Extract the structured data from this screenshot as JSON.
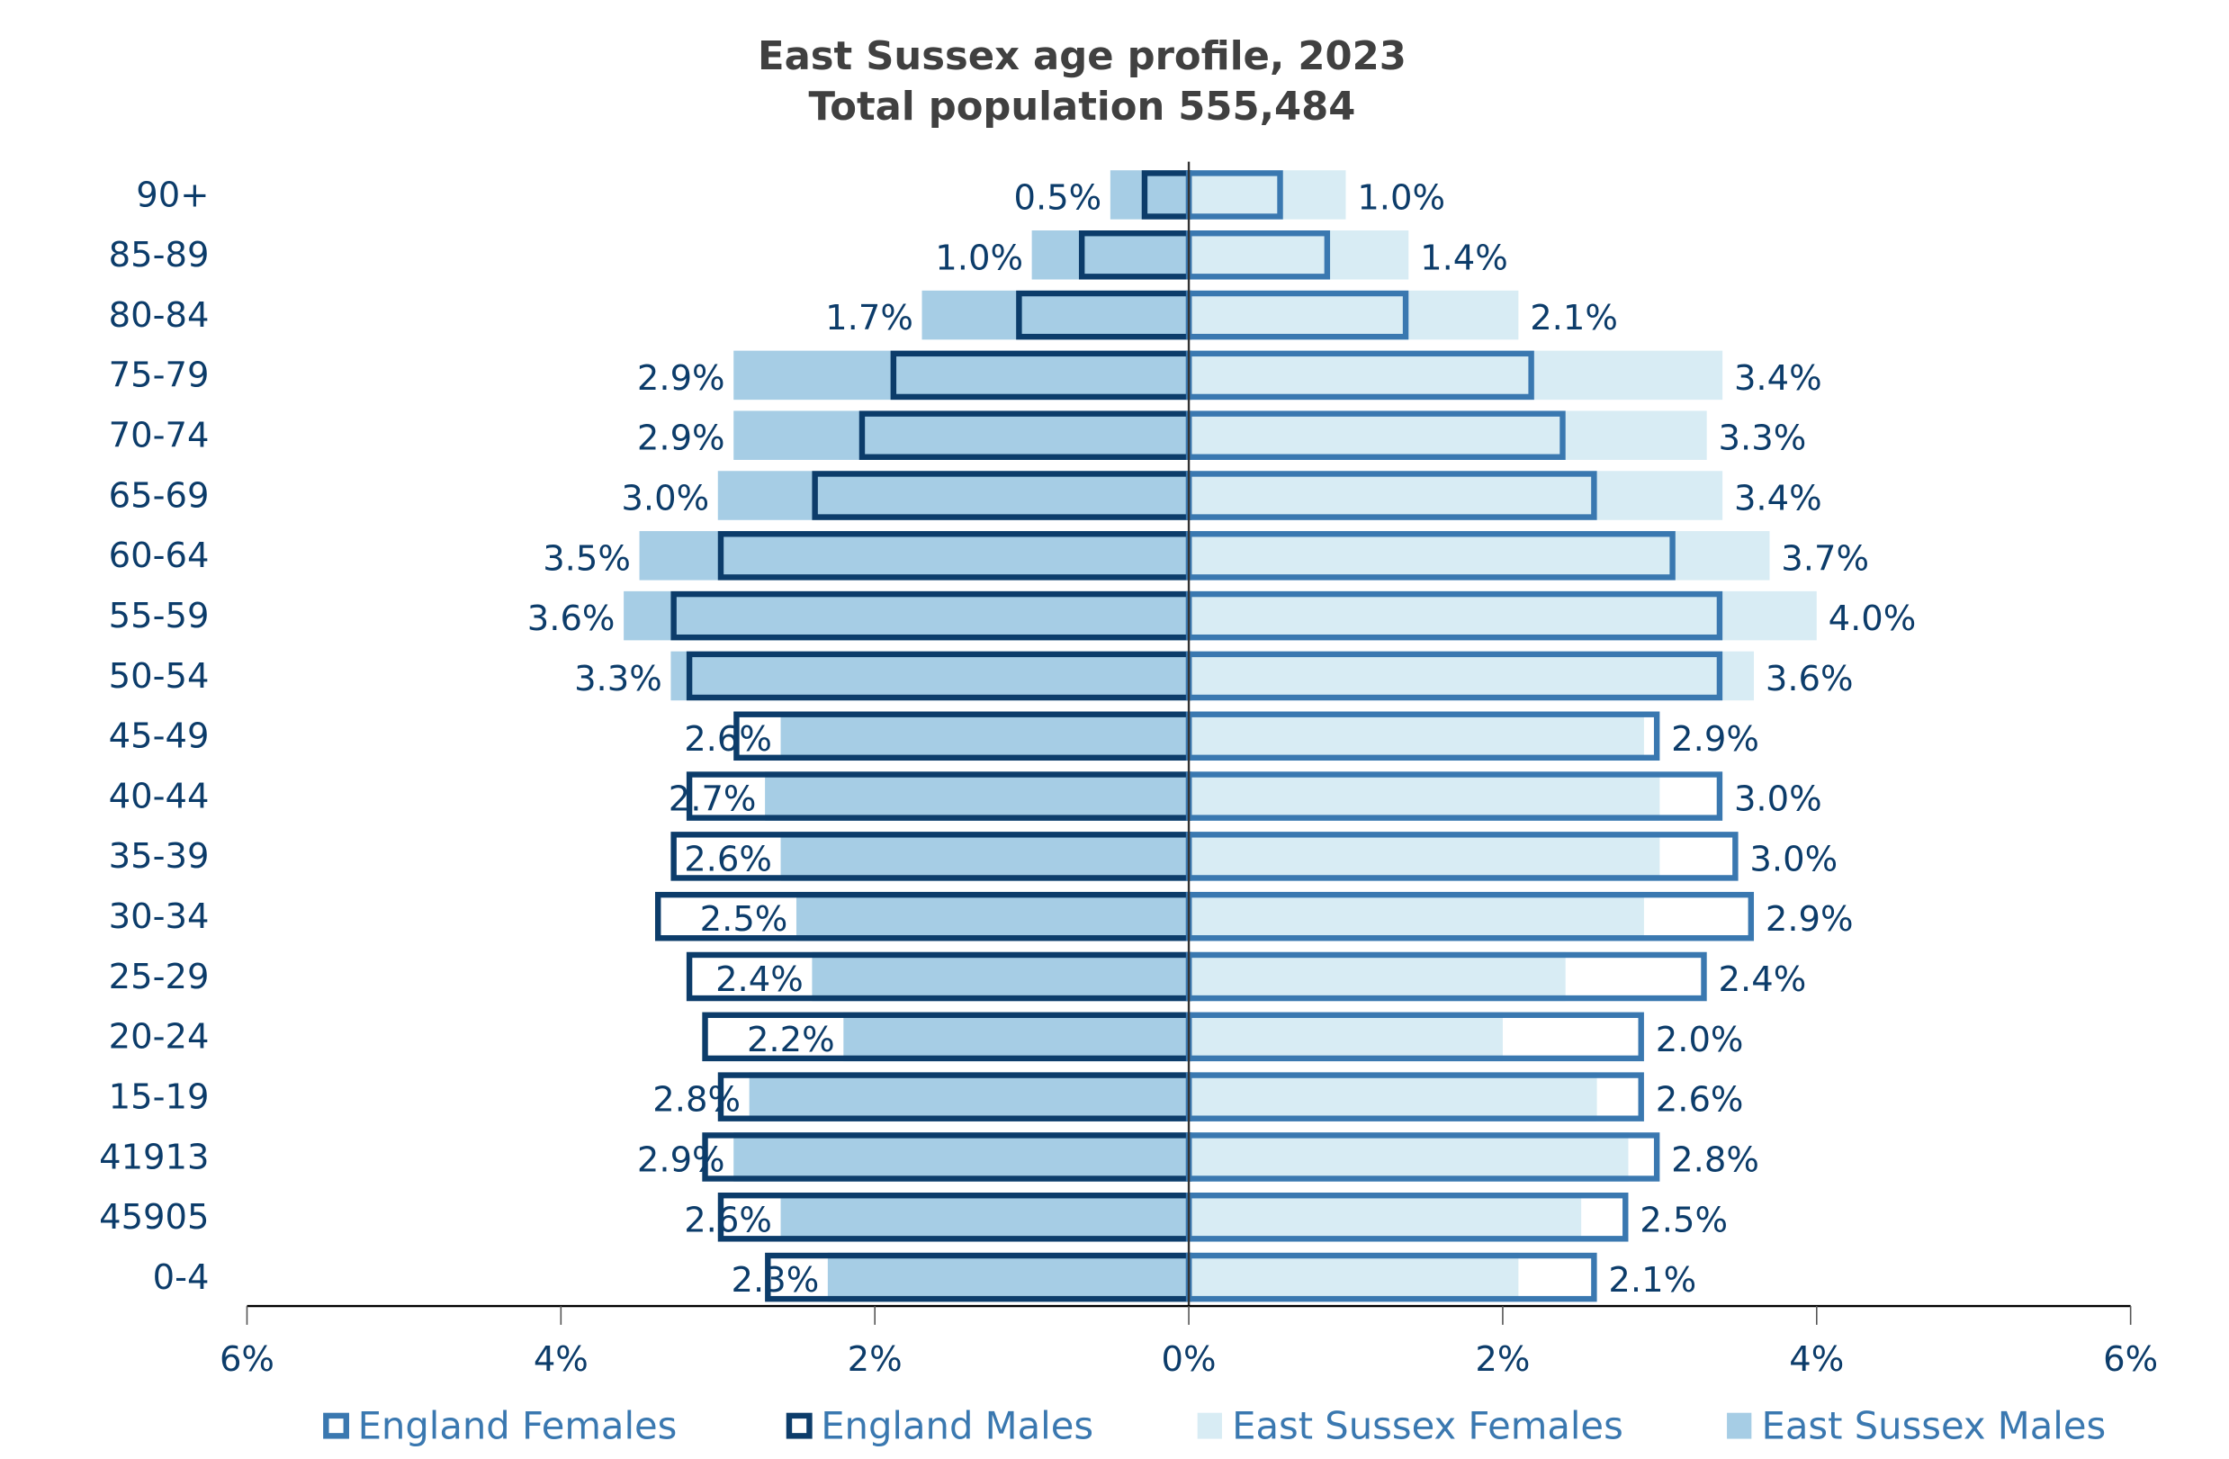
{
  "chart_data": {
    "type": "bar",
    "orientation": "horizontal",
    "title": "East Sussex age profile, 2023",
    "subtitle": "Total population 555,484",
    "categories": [
      "90+",
      "85-89",
      "80-84",
      "75-79",
      "70-74",
      "65-69",
      "60-64",
      "55-59",
      "50-54",
      "45-49",
      "40-44",
      "35-39",
      "30-34",
      "25-29",
      "20-24",
      "15-19",
      "41913",
      "45905",
      "0-4"
    ],
    "series": [
      {
        "name": "England Females",
        "side": "right",
        "style": "outline",
        "color": "#3a78b0",
        "values": [
          0.6,
          0.9,
          1.4,
          2.2,
          2.4,
          2.6,
          3.1,
          3.4,
          3.4,
          3.0,
          3.4,
          3.5,
          3.6,
          3.3,
          2.9,
          2.9,
          3.0,
          2.8,
          2.6
        ]
      },
      {
        "name": "England Males",
        "side": "left",
        "style": "outline",
        "color": "#0c3c6a",
        "values": [
          0.3,
          0.7,
          1.1,
          1.9,
          2.1,
          2.4,
          3.0,
          3.3,
          3.2,
          2.9,
          3.2,
          3.3,
          3.4,
          3.2,
          3.1,
          3.0,
          3.1,
          3.0,
          2.7
        ]
      },
      {
        "name": "East Sussex Females",
        "side": "right",
        "style": "fill",
        "color": "#d8ecf4",
        "values": [
          1.0,
          1.4,
          2.1,
          3.4,
          3.3,
          3.4,
          3.7,
          4.0,
          3.6,
          2.9,
          3.0,
          3.0,
          2.9,
          2.4,
          2.0,
          2.6,
          2.8,
          2.5,
          2.1
        ]
      },
      {
        "name": "East Sussex Males",
        "side": "left",
        "style": "fill",
        "color": "#a6cde5",
        "values": [
          0.5,
          1.0,
          1.7,
          2.9,
          2.9,
          3.0,
          3.5,
          3.6,
          3.3,
          2.6,
          2.7,
          2.6,
          2.5,
          2.4,
          2.2,
          2.8,
          2.9,
          2.6,
          2.3
        ]
      }
    ],
    "data_labels_males": [
      "0.5%",
      "1.0%",
      "1.7%",
      "2.9%",
      "2.9%",
      "3.0%",
      "3.5%",
      "3.6%",
      "3.3%",
      "2.6%",
      "2.7%",
      "2.6%",
      "2.5%",
      "2.4%",
      "2.2%",
      "2.8%",
      "2.9%",
      "2.6%",
      "2.3%"
    ],
    "data_labels_females": [
      "1.0%",
      "1.4%",
      "2.1%",
      "3.4%",
      "3.3%",
      "3.4%",
      "3.7%",
      "4.0%",
      "3.6%",
      "2.9%",
      "3.0%",
      "3.0%",
      "2.9%",
      "2.4%",
      "2.0%",
      "2.6%",
      "2.8%",
      "2.5%",
      "2.1%"
    ],
    "xlim": [
      -6,
      6
    ],
    "x_ticks": [
      -6,
      -4,
      -2,
      0,
      2,
      4,
      6
    ],
    "x_tick_labels": [
      "6%",
      "4%",
      "2%",
      "0%",
      "2%",
      "4%",
      "6%"
    ],
    "legend_position": "bottom",
    "grid": false
  }
}
